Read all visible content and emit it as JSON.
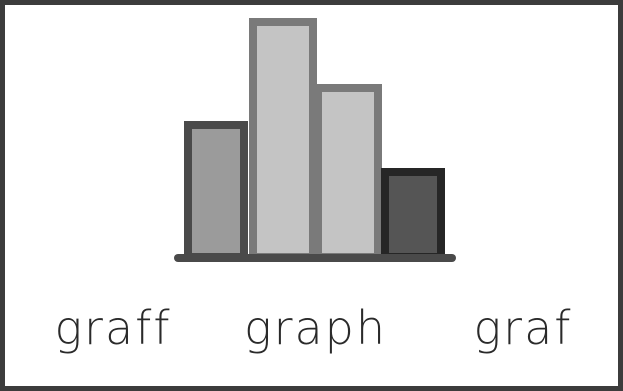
{
  "icon": {
    "name": "bar-graph-icon",
    "colors": {
      "border": "#3c3c3c",
      "baseline": "#4a4a4a",
      "bars": [
        {
          "fill": "#9b9b9b",
          "stroke": "#4a4a4a"
        },
        {
          "fill": "#c4c4c4",
          "stroke": "#7a7a7a"
        },
        {
          "fill": "#c4c4c4",
          "stroke": "#7a7a7a"
        },
        {
          "fill": "#555555",
          "stroke": "#262626"
        }
      ]
    }
  },
  "words": [
    "graff",
    "graph",
    "graf"
  ]
}
